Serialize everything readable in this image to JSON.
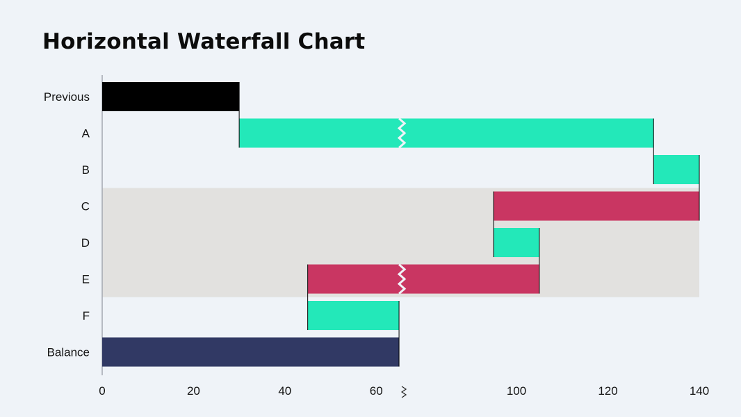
{
  "chart_data": {
    "type": "bar",
    "orientation": "horizontal",
    "subtype": "waterfall",
    "title": "Horizontal Waterfall Chart",
    "categories": [
      "Previous",
      "A",
      "B",
      "C",
      "D",
      "E",
      "F",
      "Balance"
    ],
    "bars": [
      {
        "category": "Previous",
        "start": 0,
        "end": 30,
        "kind": "total"
      },
      {
        "category": "A",
        "start": 30,
        "end": 130,
        "kind": "increase",
        "broken": true
      },
      {
        "category": "B",
        "start": 130,
        "end": 140,
        "kind": "increase"
      },
      {
        "category": "C",
        "start": 140,
        "end": 95,
        "kind": "decrease"
      },
      {
        "category": "D",
        "start": 95,
        "end": 105,
        "kind": "increase"
      },
      {
        "category": "E",
        "start": 105,
        "end": 45,
        "kind": "decrease",
        "broken": true
      },
      {
        "category": "F",
        "start": 45,
        "end": 65,
        "kind": "increase"
      },
      {
        "category": "Balance",
        "start": 0,
        "end": 65,
        "kind": "total-end"
      }
    ],
    "x_ticks": [
      0,
      20,
      40,
      60,
      100,
      120,
      140
    ],
    "xlim": [
      0,
      140
    ],
    "axis_break": {
      "from": 65,
      "to": 90
    },
    "highlight_band": {
      "categories": [
        "C",
        "D",
        "E"
      ],
      "color": "#e2e1df"
    },
    "colors": {
      "increase": "#23e8b9",
      "decrease": "#c93662",
      "total": "#000000",
      "total-end": "#313964",
      "axis": "#a3a7b0"
    },
    "grid": false,
    "legend": "none"
  }
}
